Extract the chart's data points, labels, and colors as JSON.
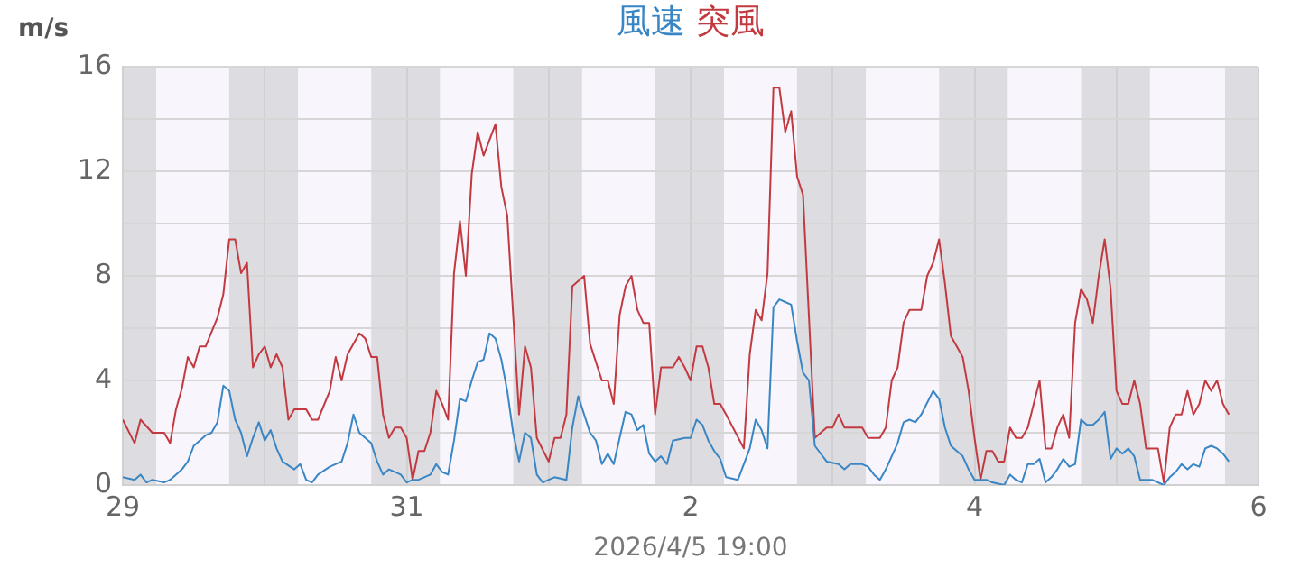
{
  "chart_data": {
    "type": "line",
    "ylabel": "m/s",
    "legend": "top",
    "grid": true,
    "xlim": [
      "2026-03-29",
      "2026-04-06"
    ],
    "xticks": [
      {
        "value": "2026-03-29",
        "label": "29"
      },
      {
        "value": "2026-03-30",
        "label": null
      },
      {
        "value": "2026-03-31",
        "label": "31"
      },
      {
        "value": "2026-04-01",
        "label": null
      },
      {
        "value": "2026-04-02",
        "label": "2"
      },
      {
        "value": "2026-04-03",
        "label": null
      },
      {
        "value": "2026-04-04",
        "label": "4"
      },
      {
        "value": "2026-04-05",
        "label": null
      },
      {
        "value": "2026-04-06",
        "label": "6"
      }
    ],
    "ylim": [
      0,
      16
    ],
    "yticks": [
      0,
      {
        "value": 2,
        "label": null
      },
      4,
      {
        "value": 6,
        "label": null
      },
      8,
      {
        "value": 10,
        "label": null
      },
      12,
      {
        "value": 14,
        "label": null
      },
      16
    ],
    "annotations": [
      "2026/4/5 19:00"
    ],
    "bands": [
      {
        "axis": "x",
        "from": "2026-03-29T00:00",
        "to": "2026-03-29T05:40",
        "color": "#dddde1"
      },
      {
        "axis": "x",
        "from": "2026-03-29T05:40",
        "to": "2026-03-29T18:00",
        "color": "#f8f6fc"
      },
      {
        "axis": "x",
        "from": "2026-03-29T18:00",
        "to": "2026-03-30T05:40",
        "color": "#dddde1"
      },
      {
        "axis": "x",
        "from": "2026-03-30T05:40",
        "to": "2026-03-30T18:00",
        "color": "#f8f6fc"
      },
      {
        "axis": "x",
        "from": "2026-03-30T18:00",
        "to": "2026-03-31T05:40",
        "color": "#dddde1"
      },
      {
        "axis": "x",
        "from": "2026-03-31T05:40",
        "to": "2026-03-31T18:00",
        "color": "#f8f6fc"
      },
      {
        "axis": "x",
        "from": "2026-03-31T18:00",
        "to": "2026-04-01T05:40",
        "color": "#dddde1"
      },
      {
        "axis": "x",
        "from": "2026-04-01T05:40",
        "to": "2026-04-01T18:00",
        "color": "#f8f6fc"
      },
      {
        "axis": "x",
        "from": "2026-04-01T18:00",
        "to": "2026-04-02T05:40",
        "color": "#dddde1"
      },
      {
        "axis": "x",
        "from": "2026-04-02T05:40",
        "to": "2026-04-02T18:00",
        "color": "#f8f6fc"
      },
      {
        "axis": "x",
        "from": "2026-04-02T18:00",
        "to": "2026-04-03T05:40",
        "color": "#dddde1"
      },
      {
        "axis": "x",
        "from": "2026-04-03T05:40",
        "to": "2026-04-03T18:00",
        "color": "#f8f6fc"
      },
      {
        "axis": "x",
        "from": "2026-04-03T18:00",
        "to": "2026-04-04T05:40",
        "color": "#dddde1"
      },
      {
        "axis": "x",
        "from": "2026-04-04T05:40",
        "to": "2026-04-04T18:00",
        "color": "#f8f6fc"
      },
      {
        "axis": "x",
        "from": "2026-04-04T18:00",
        "to": "2026-04-05T05:40",
        "color": "#dddde1"
      },
      {
        "axis": "x",
        "from": "2026-04-05T05:40",
        "to": "2026-04-05T18:20",
        "color": "#f8f6fc"
      },
      {
        "axis": "x",
        "from": "2026-04-05T18:20",
        "to": "2026-04-06T00:00",
        "color": "#dddde1"
      }
    ],
    "series": [
      {
        "name": "風速",
        "color": "#3a86c4",
        "x": [
          "2026-03-29T00:00",
          "2026-03-29T02:00",
          "2026-03-29T03:00",
          "2026-03-29T04:00",
          "2026-03-29T05:00",
          "2026-03-29T07:00",
          "2026-03-29T08:00",
          "2026-03-29T09:00",
          "2026-03-29T10:00",
          "2026-03-29T11:00",
          "2026-03-29T12:00",
          "2026-03-29T14:00",
          "2026-03-29T15:00",
          "2026-03-29T16:00",
          "2026-03-29T17:00",
          "2026-03-29T18:00",
          "2026-03-29T19:00",
          "2026-03-29T20:00",
          "2026-03-29T21:00",
          "2026-03-29T22:00",
          "2026-03-29T23:00",
          "2026-03-30T00:00",
          "2026-03-30T01:00",
          "2026-03-30T02:00",
          "2026-03-30T03:00",
          "2026-03-30T05:00",
          "2026-03-30T06:00",
          "2026-03-30T07:00",
          "2026-03-30T08:00",
          "2026-03-30T09:00",
          "2026-03-30T11:00",
          "2026-03-30T13:00",
          "2026-03-30T14:00",
          "2026-03-30T15:00",
          "2026-03-30T16:00",
          "2026-03-30T18:00",
          "2026-03-30T19:00",
          "2026-03-30T20:00",
          "2026-03-30T21:00",
          "2026-03-30T23:00",
          "2026-03-31T00:00",
          "2026-03-31T01:00",
          "2026-03-31T02:00",
          "2026-03-31T04:00",
          "2026-03-31T05:00",
          "2026-03-31T06:00",
          "2026-03-31T07:00",
          "2026-03-31T08:00",
          "2026-03-31T09:00",
          "2026-03-31T10:00",
          "2026-03-31T11:00",
          "2026-03-31T12:00",
          "2026-03-31T13:00",
          "2026-03-31T14:00",
          "2026-03-31T15:00",
          "2026-03-31T16:00",
          "2026-03-31T17:00",
          "2026-03-31T18:00",
          "2026-03-31T19:00",
          "2026-03-31T20:00",
          "2026-03-31T21:00",
          "2026-03-31T22:00",
          "2026-03-31T23:00",
          "2026-04-01T00:00",
          "2026-04-01T01:00",
          "2026-04-01T03:00",
          "2026-04-01T04:00",
          "2026-04-01T05:00",
          "2026-04-01T07:00",
          "2026-04-01T08:00",
          "2026-04-01T09:00",
          "2026-04-01T10:00",
          "2026-04-01T11:00",
          "2026-04-01T13:00",
          "2026-04-01T14:00",
          "2026-04-01T15:00",
          "2026-04-01T16:00",
          "2026-04-01T17:00",
          "2026-04-01T18:00",
          "2026-04-01T19:00",
          "2026-04-01T20:00",
          "2026-04-01T21:00",
          "2026-04-01T23:00",
          "2026-04-02T00:00",
          "2026-04-02T01:00",
          "2026-04-02T02:00",
          "2026-04-02T03:00",
          "2026-04-02T04:00",
          "2026-04-02T05:00",
          "2026-04-02T06:00",
          "2026-04-02T08:00",
          "2026-04-02T10:00",
          "2026-04-02T11:00",
          "2026-04-02T12:00",
          "2026-04-02T13:00",
          "2026-04-02T14:00",
          "2026-04-02T15:00",
          "2026-04-02T16:00",
          "2026-04-02T17:00",
          "2026-04-02T18:00",
          "2026-04-02T19:00",
          "2026-04-02T20:00",
          "2026-04-02T21:00",
          "2026-04-02T23:00",
          "2026-04-03T01:00",
          "2026-04-03T02:00",
          "2026-04-03T03:00",
          "2026-04-03T05:00",
          "2026-04-03T06:00",
          "2026-04-03T07:00",
          "2026-04-03T08:00",
          "2026-04-03T09:00",
          "2026-04-03T10:00",
          "2026-04-03T11:00",
          "2026-04-03T12:00",
          "2026-04-03T13:00",
          "2026-04-03T14:00",
          "2026-04-03T15:00",
          "2026-04-03T17:00",
          "2026-04-03T18:00",
          "2026-04-03T19:00",
          "2026-04-03T20:00",
          "2026-04-03T21:00",
          "2026-04-03T22:00",
          "2026-04-03T23:00",
          "2026-04-04T00:00",
          "2026-04-04T02:00",
          "2026-04-04T03:00",
          "2026-04-04T05:00",
          "2026-04-04T06:00",
          "2026-04-04T07:00",
          "2026-04-04T08:00",
          "2026-04-04T09:00",
          "2026-04-04T10:00",
          "2026-04-04T11:00",
          "2026-04-04T12:00",
          "2026-04-04T13:00",
          "2026-04-04T14:00",
          "2026-04-04T15:00",
          "2026-04-04T16:00",
          "2026-04-04T17:00",
          "2026-04-04T18:00",
          "2026-04-04T19:00",
          "2026-04-04T20:00",
          "2026-04-04T21:00",
          "2026-04-04T22:00",
          "2026-04-04T23:00",
          "2026-04-05T00:00",
          "2026-04-05T01:00",
          "2026-04-05T02:00",
          "2026-04-05T03:00",
          "2026-04-05T04:00",
          "2026-04-05T06:00",
          "2026-04-05T08:00",
          "2026-04-05T09:00",
          "2026-04-05T10:00",
          "2026-04-05T11:00",
          "2026-04-05T12:00",
          "2026-04-05T13:00",
          "2026-04-05T14:00",
          "2026-04-05T15:00",
          "2026-04-05T16:00",
          "2026-04-05T17:00",
          "2026-04-05T18:00",
          "2026-04-05T19:00"
        ],
        "values": [
          0.3,
          0.2,
          0.4,
          0.1,
          0.2,
          0.1,
          0.2,
          0.4,
          0.6,
          0.9,
          1.5,
          1.9,
          2.0,
          2.4,
          3.8,
          3.6,
          2.5,
          2.0,
          1.1,
          1.8,
          2.4,
          1.7,
          2.1,
          1.4,
          0.9,
          0.6,
          0.8,
          0.2,
          0.1,
          0.4,
          0.7,
          0.9,
          1.6,
          2.7,
          2.0,
          1.6,
          0.9,
          0.4,
          0.6,
          0.4,
          0.1,
          0.2,
          0.2,
          0.4,
          0.8,
          0.5,
          0.4,
          1.7,
          3.3,
          3.2,
          4.0,
          4.7,
          4.8,
          5.8,
          5.6,
          4.8,
          3.6,
          2.0,
          0.9,
          2.0,
          1.8,
          0.4,
          0.1,
          0.2,
          0.3,
          0.2,
          2.2,
          3.4,
          2.0,
          1.7,
          0.8,
          1.2,
          0.8,
          2.8,
          2.7,
          2.1,
          2.3,
          1.2,
          0.9,
          1.1,
          0.8,
          1.7,
          1.8,
          1.8,
          2.5,
          2.3,
          1.7,
          1.3,
          1.0,
          0.3,
          0.2,
          1.4,
          2.5,
          2.1,
          1.4,
          6.8,
          7.1,
          7.0,
          6.9,
          5.5,
          4.3,
          4.0,
          1.5,
          0.9,
          0.8,
          0.6,
          0.8,
          0.8,
          0.7,
          0.4,
          0.2,
          0.6,
          1.1,
          1.6,
          2.4,
          2.5,
          2.4,
          2.7,
          3.6,
          3.3,
          2.2,
          1.5,
          1.3,
          1.1,
          0.6,
          0.2,
          0.2,
          0.1,
          0,
          0.4,
          0.2,
          0.1,
          0.8,
          0.8,
          1.0,
          0.1,
          0.3,
          0.6,
          1.0,
          0.7,
          0.8,
          2.5,
          2.3,
          2.3,
          2.5,
          2.8,
          1.0,
          1.4,
          1.2,
          1.4,
          1.1,
          0.2,
          0.2,
          0,
          0.3,
          0.5,
          0.8,
          0.6,
          0.8,
          0.7,
          1.4,
          1.5,
          1.4,
          1.2,
          0.9
        ]
      },
      {
        "name": "突風",
        "color": "#c23a40",
        "x": [
          "2026-03-29T00:00",
          "2026-03-29T02:00",
          "2026-03-29T03:00",
          "2026-03-29T05:00",
          "2026-03-29T07:00",
          "2026-03-29T08:00",
          "2026-03-29T09:00",
          "2026-03-29T10:00",
          "2026-03-29T11:00",
          "2026-03-29T12:00",
          "2026-03-29T13:00",
          "2026-03-29T14:00",
          "2026-03-29T16:00",
          "2026-03-29T17:00",
          "2026-03-29T18:00",
          "2026-03-29T19:00",
          "2026-03-29T20:00",
          "2026-03-29T21:00",
          "2026-03-29T22:00",
          "2026-03-29T23:00",
          "2026-03-30T00:00",
          "2026-03-30T01:00",
          "2026-03-30T02:00",
          "2026-03-30T03:00",
          "2026-03-30T04:00",
          "2026-03-30T05:00",
          "2026-03-30T07:00",
          "2026-03-30T08:00",
          "2026-03-30T09:00",
          "2026-03-30T11:00",
          "2026-03-30T12:00",
          "2026-03-30T13:00",
          "2026-03-30T14:00",
          "2026-03-30T16:00",
          "2026-03-30T17:00",
          "2026-03-30T18:00",
          "2026-03-30T19:00",
          "2026-03-30T20:00",
          "2026-03-30T21:00",
          "2026-03-30T22:00",
          "2026-03-30T23:00",
          "2026-03-31T00:00",
          "2026-03-31T01:00",
          "2026-03-31T02:00",
          "2026-03-31T03:00",
          "2026-03-31T04:00",
          "2026-03-31T05:00",
          "2026-03-31T06:00",
          "2026-03-31T07:00",
          "2026-03-31T08:00",
          "2026-03-31T09:00",
          "2026-03-31T10:00",
          "2026-03-31T11:00",
          "2026-03-31T12:00",
          "2026-03-31T13:00",
          "2026-03-31T14:00",
          "2026-03-31T15:00",
          "2026-03-31T16:00",
          "2026-03-31T17:00",
          "2026-03-31T19:00",
          "2026-03-31T20:00",
          "2026-03-31T21:00",
          "2026-03-31T22:00",
          "2026-04-01T00:00",
          "2026-04-01T01:00",
          "2026-04-01T02:00",
          "2026-04-01T03:00",
          "2026-04-01T04:00",
          "2026-04-01T06:00",
          "2026-04-01T07:00",
          "2026-04-01T09:00",
          "2026-04-01T10:00",
          "2026-04-01T11:00",
          "2026-04-01T12:00",
          "2026-04-01T13:00",
          "2026-04-01T14:00",
          "2026-04-01T15:00",
          "2026-04-01T16:00",
          "2026-04-01T17:00",
          "2026-04-01T18:00",
          "2026-04-01T19:00",
          "2026-04-01T21:00",
          "2026-04-01T22:00",
          "2026-04-01T23:00",
          "2026-04-02T00:00",
          "2026-04-02T01:00",
          "2026-04-02T02:00",
          "2026-04-02T03:00",
          "2026-04-02T04:00",
          "2026-04-02T05:00",
          "2026-04-02T06:00",
          "2026-04-02T09:00",
          "2026-04-02T10:00",
          "2026-04-02T11:00",
          "2026-04-02T12:00",
          "2026-04-02T13:00",
          "2026-04-02T14:00",
          "2026-04-02T15:00",
          "2026-04-02T16:00",
          "2026-04-02T17:00",
          "2026-04-02T18:00",
          "2026-04-02T19:00",
          "2026-04-02T21:00",
          "2026-04-02T23:00",
          "2026-04-03T00:00",
          "2026-04-03T01:00",
          "2026-04-03T02:00",
          "2026-04-03T05:00",
          "2026-04-03T06:00",
          "2026-04-03T08:00",
          "2026-04-03T09:00",
          "2026-04-03T10:00",
          "2026-04-03T11:00",
          "2026-04-03T12:00",
          "2026-04-03T13:00",
          "2026-04-03T15:00",
          "2026-04-03T16:00",
          "2026-04-03T17:00",
          "2026-04-03T18:00",
          "2026-04-03T19:00",
          "2026-04-03T20:00",
          "2026-04-03T21:00",
          "2026-04-03T22:00",
          "2026-04-03T23:00",
          "2026-04-04T00:00",
          "2026-04-04T01:00",
          "2026-04-04T02:00",
          "2026-04-04T03:00",
          "2026-04-04T04:00",
          "2026-04-04T05:00",
          "2026-04-04T06:00",
          "2026-04-04T07:00",
          "2026-04-04T08:00",
          "2026-04-04T09:00",
          "2026-04-04T11:00",
          "2026-04-04T12:00",
          "2026-04-04T13:00",
          "2026-04-04T14:00",
          "2026-04-04T15:00",
          "2026-04-04T16:00",
          "2026-04-04T17:00",
          "2026-04-04T18:00",
          "2026-04-04T19:00",
          "2026-04-04T20:00",
          "2026-04-04T21:00",
          "2026-04-04T22:00",
          "2026-04-04T23:00",
          "2026-04-05T00:00",
          "2026-04-05T01:00",
          "2026-04-05T02:00",
          "2026-04-05T03:00",
          "2026-04-05T04:00",
          "2026-04-05T05:00",
          "2026-04-05T07:00",
          "2026-04-05T08:00",
          "2026-04-05T09:00",
          "2026-04-05T10:00",
          "2026-04-05T11:00",
          "2026-04-05T12:00",
          "2026-04-05T13:00",
          "2026-04-05T14:00",
          "2026-04-05T15:00",
          "2026-04-05T16:00",
          "2026-04-05T17:00",
          "2026-04-05T18:00",
          "2026-04-05T19:00"
        ],
        "values": [
          2.5,
          1.6,
          2.5,
          2.0,
          2.0,
          1.6,
          2.9,
          3.7,
          4.9,
          4.5,
          5.3,
          5.3,
          6.4,
          7.3,
          9.4,
          9.4,
          8.1,
          8.5,
          4.5,
          5.0,
          5.3,
          4.5,
          5.0,
          4.5,
          2.5,
          2.9,
          2.9,
          2.5,
          2.5,
          3.6,
          4.9,
          4.0,
          5.0,
          5.8,
          5.6,
          4.9,
          4.9,
          2.7,
          1.8,
          2.2,
          2.2,
          1.8,
          0.2,
          1.3,
          1.3,
          2.0,
          3.6,
          3.1,
          2.5,
          8.1,
          10.1,
          8.0,
          11.9,
          13.5,
          12.6,
          13.2,
          13.8,
          11.4,
          10.3,
          2.7,
          5.3,
          4.5,
          1.8,
          0.9,
          1.8,
          1.8,
          2.7,
          7.6,
          8.0,
          5.4,
          4.0,
          4.0,
          3.1,
          6.5,
          7.6,
          8.0,
          6.7,
          6.2,
          6.2,
          2.7,
          4.5,
          4.5,
          4.9,
          4.5,
          4.0,
          5.3,
          5.3,
          4.5,
          3.1,
          3.1,
          2.7,
          1.4,
          5.0,
          6.7,
          6.3,
          8.1,
          15.2,
          15.2,
          13.5,
          14.3,
          11.8,
          11.1,
          1.8,
          2.2,
          2.2,
          2.7,
          2.2,
          2.2,
          1.8,
          1.8,
          2.2,
          4.0,
          4.5,
          6.2,
          6.7,
          6.7,
          8.0,
          8.5,
          9.4,
          7.7,
          5.7,
          5.3,
          4.9,
          3.6,
          1.8,
          0.2,
          1.3,
          1.3,
          0.9,
          0.9,
          2.2,
          1.8,
          1.8,
          2.2,
          4.0,
          1.4,
          1.4,
          2.2,
          2.7,
          1.8,
          6.2,
          7.5,
          7.1,
          6.2,
          8.0,
          9.4,
          7.5,
          3.6,
          3.1,
          3.1,
          4.0,
          3.1,
          1.4,
          1.4,
          0.1,
          2.2,
          2.7,
          2.7,
          3.6,
          2.7,
          3.1,
          4.0,
          3.6,
          4.0,
          3.1,
          2.7
        ]
      }
    ]
  }
}
